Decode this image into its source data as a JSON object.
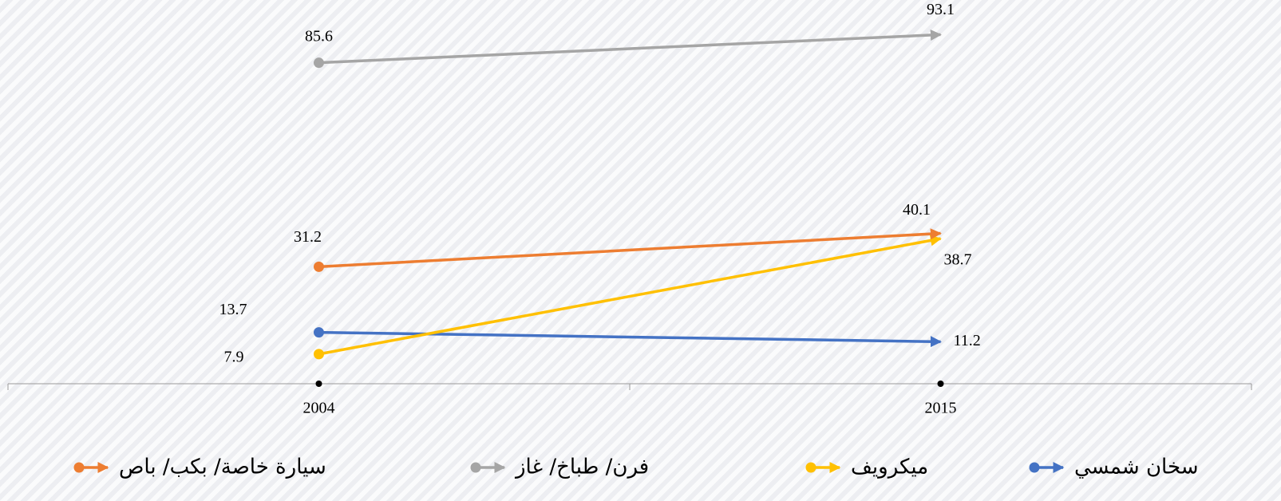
{
  "chart_data": {
    "type": "line",
    "categories": [
      "2004",
      "2015"
    ],
    "series": [
      {
        "name": "سخان شمسي",
        "color": "#4472c4",
        "values": [
          13.7,
          11.2
        ]
      },
      {
        "name": "ميكرويف",
        "color": "#ffc000",
        "values": [
          7.9,
          38.7
        ]
      },
      {
        "name": "فرن/ طباخ/ غاز",
        "color": "#a5a5a5",
        "values": [
          85.6,
          93.1
        ]
      },
      {
        "name": "سيارة خاصة/ بكب/ باص",
        "color": "#ed7d31",
        "values": [
          31.2,
          40.1
        ]
      }
    ],
    "ylim": [
      0,
      100
    ]
  }
}
